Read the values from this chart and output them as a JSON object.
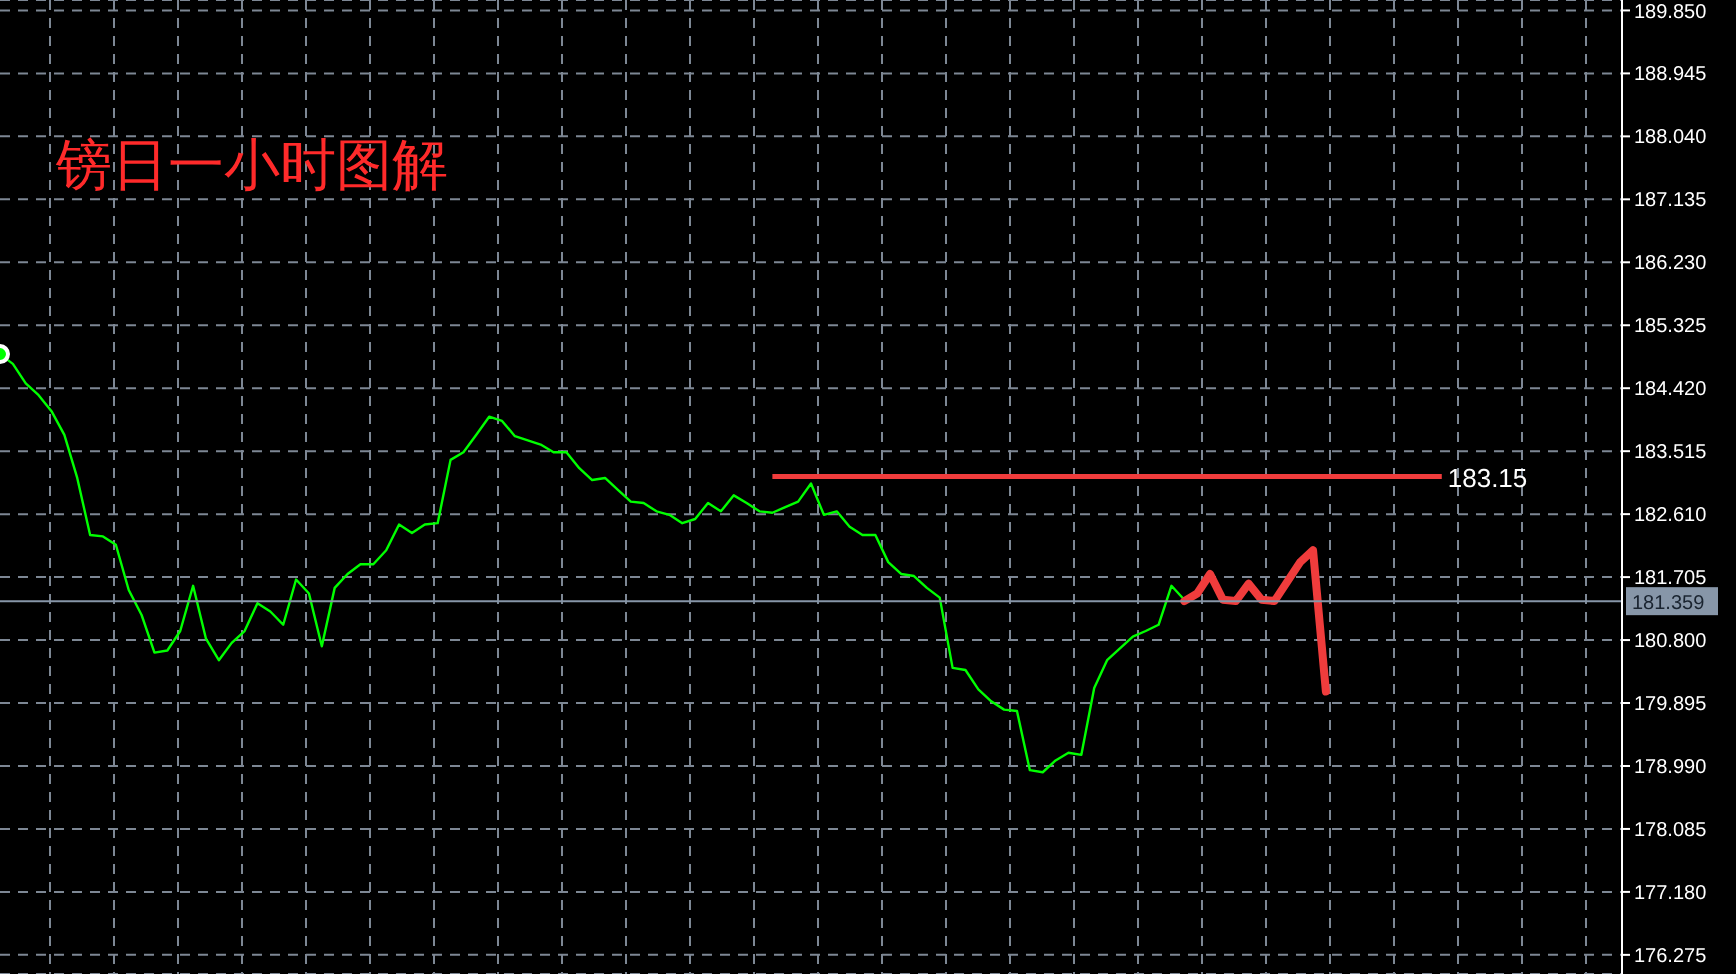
{
  "chart_data": {
    "type": "line",
    "title": "镑日一小时图解",
    "categories": [
      null,
      null,
      null,
      null,
      null,
      null,
      null,
      null,
      null,
      null,
      null,
      null,
      null,
      null,
      null,
      null,
      null,
      null,
      null,
      null,
      null,
      null,
      null,
      null,
      null,
      null,
      null,
      null,
      null,
      null,
      null,
      null,
      null,
      null,
      null,
      null,
      null,
      null,
      null,
      null,
      null,
      null,
      null,
      null,
      null,
      null,
      null,
      null,
      null,
      null,
      null,
      null,
      null,
      null,
      null,
      null,
      null,
      null,
      null,
      null,
      null,
      null,
      null,
      null,
      null,
      null,
      null,
      null,
      null,
      null,
      null,
      null,
      null,
      null,
      null,
      null,
      null,
      null,
      null,
      null,
      null,
      null,
      null,
      null,
      null,
      null,
      null,
      null,
      null,
      null,
      null,
      null,
      null,
      null,
      null,
      null,
      null,
      null,
      null,
      null,
      null,
      null,
      null,
      null,
      null,
      null,
      null,
      null,
      null,
      null,
      null,
      null,
      null,
      null,
      null,
      null,
      null,
      null,
      null,
      null,
      null,
      null,
      null,
      null,
      null,
      null,
      null
    ],
    "series": [
      {
        "color": "#00ff00",
        "values": [
          184.91,
          184.77,
          184.49,
          184.32,
          184.09,
          183.75,
          183.13,
          182.31,
          182.29,
          182.17,
          181.52,
          181.16,
          180.62,
          180.65,
          180.93,
          181.58,
          180.82,
          180.51,
          180.76,
          180.93,
          181.33,
          181.21,
          181.02,
          181.67,
          181.47,
          180.71,
          181.55,
          181.75,
          181.89,
          181.89,
          182.09,
          182.46,
          182.34,
          182.46,
          182.48,
          183.39,
          183.5,
          183.75,
          184.01,
          183.95,
          183.73,
          183.67,
          183.61,
          183.5,
          183.5,
          183.27,
          183.1,
          183.13,
          182.96,
          182.79,
          182.77,
          182.65,
          182.6,
          182.48,
          182.54,
          182.77,
          182.65,
          182.88,
          182.77,
          182.65,
          182.63,
          182.71,
          182.79,
          183.05,
          182.6,
          182.65,
          182.43,
          182.31,
          182.31,
          181.92,
          181.75,
          181.72,
          181.55,
          181.41,
          180.4,
          180.37,
          180.09,
          179.92,
          179.8,
          179.78,
          178.93,
          178.9,
          179.07,
          179.18,
          179.15,
          180.11,
          180.51,
          180.68,
          180.85,
          180.93,
          181.02,
          181.58,
          181.38,
          null,
          null,
          null,
          null,
          null,
          null,
          null,
          null,
          null,
          null,
          null,
          null,
          null,
          null,
          null,
          null,
          null,
          null,
          null,
          null,
          null,
          null,
          null,
          null,
          null,
          null,
          null,
          null,
          null,
          null,
          null,
          null,
          null,
          null
        ]
      },
      {
        "color": "#f03c3c",
        "values": [
          null,
          null,
          null,
          null,
          null,
          null,
          null,
          null,
          null,
          null,
          null,
          null,
          null,
          null,
          null,
          null,
          null,
          null,
          null,
          null,
          null,
          null,
          null,
          null,
          null,
          null,
          null,
          null,
          null,
          null,
          null,
          null,
          null,
          null,
          null,
          null,
          null,
          null,
          null,
          null,
          null,
          null,
          null,
          null,
          null,
          null,
          null,
          null,
          null,
          null,
          null,
          null,
          null,
          null,
          null,
          null,
          null,
          null,
          null,
          null,
          null,
          null,
          null,
          null,
          null,
          null,
          null,
          null,
          null,
          null,
          null,
          null,
          null,
          null,
          null,
          null,
          null,
          null,
          null,
          null,
          null,
          null,
          null,
          null,
          null,
          null,
          null,
          null,
          null,
          null,
          null,
          null,
          181.36,
          181.47,
          181.75,
          181.38,
          181.36,
          181.61,
          181.38,
          181.36,
          181.64,
          181.92,
          182.09,
          180.06,
          null,
          null,
          null,
          null,
          null,
          null,
          null,
          null,
          null,
          null,
          null,
          null,
          null,
          null,
          null,
          null,
          null,
          null,
          null,
          null,
          null,
          null,
          null
        ]
      }
    ],
    "ylim": [
      176.0,
      190.0
    ],
    "yticks": [
      {
        "value": 189.85,
        "label": "189.850"
      },
      {
        "value": 188.945,
        "label": "188.945"
      },
      {
        "value": 188.04,
        "label": "188.040"
      },
      {
        "value": 187.135,
        "label": "187.135"
      },
      {
        "value": 186.23,
        "label": "186.230"
      },
      {
        "value": 185.325,
        "label": "185.325"
      },
      {
        "value": 184.42,
        "label": "184.420"
      },
      {
        "value": 183.515,
        "label": "183.515"
      },
      {
        "value": 182.61,
        "label": "182.610"
      },
      {
        "value": 181.705,
        "label": "181.705"
      },
      {
        "value": 180.8,
        "label": "180.800"
      },
      {
        "value": 179.895,
        "label": "179.895"
      },
      {
        "value": 178.99,
        "label": "178.990"
      },
      {
        "value": 178.085,
        "label": "178.085"
      },
      {
        "value": 177.18,
        "label": "177.180"
      },
      {
        "value": 176.275,
        "label": "176.275"
      }
    ],
    "ref_lines": [
      {
        "axis": "y",
        "value": 183.15,
        "label": "183.15",
        "color": "#f03c3c"
      },
      {
        "axis": "y",
        "value": 181.359,
        "label": "181.359",
        "color": "#8796a8"
      }
    ],
    "grid": true,
    "legend": false,
    "tick_labels": "y",
    "marker": "none",
    "line_style": "solid"
  }
}
